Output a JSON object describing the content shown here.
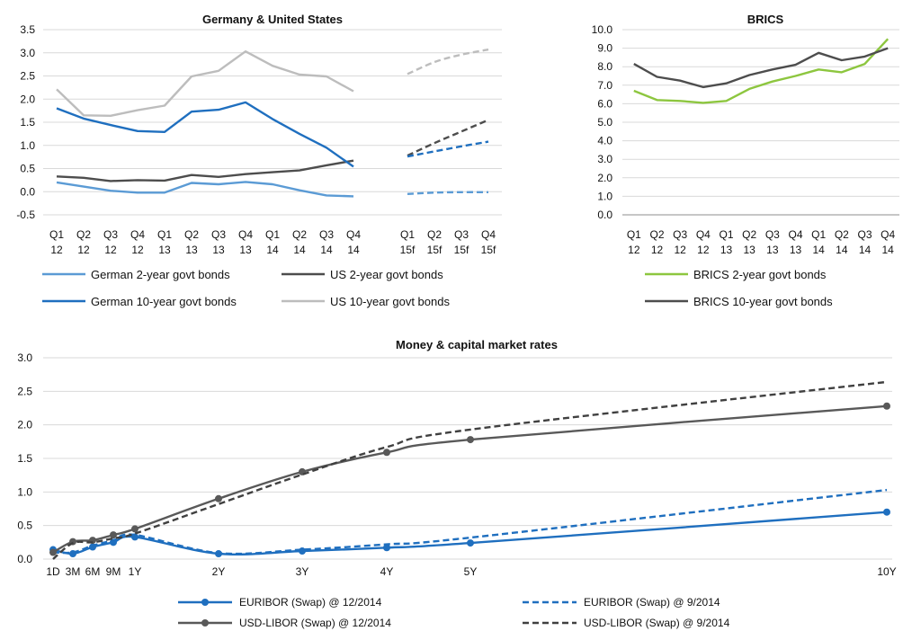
{
  "chart_data": [
    {
      "type": "line",
      "title": "Germany & United States",
      "xlabel": "",
      "ylabel": "",
      "ylim": [
        -0.5,
        3.5
      ],
      "yticks": [
        "3.5",
        "3.0",
        "2.5",
        "2.0",
        "1.5",
        "1.0",
        "0.5",
        "0.0",
        "-0.5"
      ],
      "categories": [
        [
          "Q1",
          "12"
        ],
        [
          "Q2",
          "12"
        ],
        [
          "Q3",
          "12"
        ],
        [
          "Q4",
          "12"
        ],
        [
          "Q1",
          "13"
        ],
        [
          "Q2",
          "13"
        ],
        [
          "Q3",
          "13"
        ],
        [
          "Q4",
          "13"
        ],
        [
          "Q1",
          "14"
        ],
        [
          "Q2",
          "14"
        ],
        [
          "Q3",
          "14"
        ],
        [
          "Q4",
          "14"
        ],
        [
          "Q1",
          "15f"
        ],
        [
          "Q2",
          "15f"
        ],
        [
          "Q3",
          "15f"
        ],
        [
          "Q4",
          "15f"
        ]
      ],
      "gridlines": true,
      "legend_position": "bottom",
      "series": [
        {
          "name": "German 2-year govt bonds",
          "color": "#5b9bd5",
          "values": [
            0.2,
            0.11,
            0.02,
            -0.02,
            -0.02,
            0.19,
            0.16,
            0.21,
            0.16,
            0.03,
            -0.08,
            -0.1,
            null,
            null,
            null,
            null
          ]
        },
        {
          "name": "US 2-year govt bonds",
          "color": "#4d4d4d",
          "values": [
            0.33,
            0.3,
            0.23,
            0.25,
            0.24,
            0.36,
            0.32,
            0.38,
            0.42,
            0.46,
            0.57,
            0.67,
            null,
            null,
            null,
            null
          ]
        },
        {
          "name": "German 10-year govt bonds",
          "color": "#1f6fbf",
          "values": [
            1.8,
            1.58,
            1.44,
            1.31,
            1.29,
            1.73,
            1.77,
            1.93,
            1.57,
            1.25,
            0.95,
            0.54,
            null,
            null,
            null,
            null
          ]
        },
        {
          "name": "US 10-year govt bonds",
          "color": "#bdbdbd",
          "values": [
            2.21,
            1.65,
            1.64,
            1.76,
            1.86,
            2.49,
            2.61,
            3.03,
            2.72,
            2.53,
            2.49,
            2.17,
            null,
            null,
            null,
            null
          ]
        },
        {
          "forecast": true,
          "color": "#5b9bd5",
          "values": [
            null,
            null,
            null,
            null,
            null,
            null,
            null,
            null,
            null,
            null,
            null,
            null,
            -0.05,
            -0.02,
            -0.01,
            -0.01
          ]
        },
        {
          "forecast": true,
          "color": "#4d4d4d",
          "values": [
            null,
            null,
            null,
            null,
            null,
            null,
            null,
            null,
            null,
            null,
            null,
            null,
            0.78,
            1.05,
            1.3,
            1.55
          ]
        },
        {
          "forecast": true,
          "color": "#1f6fbf",
          "values": [
            null,
            null,
            null,
            null,
            null,
            null,
            null,
            null,
            null,
            null,
            null,
            null,
            0.76,
            0.87,
            0.98,
            1.08
          ]
        },
        {
          "forecast": true,
          "color": "#bdbdbd",
          "values": [
            null,
            null,
            null,
            null,
            null,
            null,
            null,
            null,
            null,
            null,
            null,
            null,
            2.54,
            2.8,
            2.96,
            3.07
          ]
        }
      ]
    },
    {
      "type": "line",
      "title": "BRICS",
      "xlabel": "",
      "ylabel": "",
      "ylim": [
        0,
        10
      ],
      "yticks": [
        "10.0",
        "9.0",
        "8.0",
        "7.0",
        "6.0",
        "5.0",
        "4.0",
        "3.0",
        "2.0",
        "1.0",
        "0.0"
      ],
      "categories": [
        [
          "Q1",
          "12"
        ],
        [
          "Q2",
          "12"
        ],
        [
          "Q3",
          "12"
        ],
        [
          "Q4",
          "12"
        ],
        [
          "Q1",
          "13"
        ],
        [
          "Q2",
          "13"
        ],
        [
          "Q3",
          "13"
        ],
        [
          "Q4",
          "13"
        ],
        [
          "Q1",
          "14"
        ],
        [
          "Q2",
          "14"
        ],
        [
          "Q3",
          "14"
        ],
        [
          "Q4",
          "14"
        ]
      ],
      "gridlines": true,
      "legend_position": "bottom",
      "series": [
        {
          "name": "BRICS 2-year govt bonds",
          "color": "#8dc63f",
          "values": [
            6.7,
            6.2,
            6.15,
            6.05,
            6.15,
            6.8,
            7.2,
            7.5,
            7.85,
            7.7,
            8.15,
            9.5
          ]
        },
        {
          "name": "BRICS 10-year govt bonds",
          "color": "#4d4d4d",
          "values": [
            8.15,
            7.45,
            7.25,
            6.9,
            7.1,
            7.55,
            7.85,
            8.1,
            8.75,
            8.35,
            8.55,
            9.0
          ]
        }
      ]
    },
    {
      "type": "line",
      "title": "Money & capital market rates",
      "xlabel": "",
      "ylabel": "",
      "ylim": [
        0,
        3
      ],
      "yticks": [
        "3.0",
        "2.5",
        "2.0",
        "1.5",
        "1.0",
        "0.5",
        "0.0"
      ],
      "x_labels": [
        "1D",
        "3M",
        "6M",
        "9M",
        "1Y",
        "2Y",
        "3Y",
        "4Y",
        "5Y",
        "10Y"
      ],
      "x_years": [
        0.003,
        0.25,
        0.5,
        0.75,
        1,
        2,
        3,
        4,
        5,
        10
      ],
      "gridlines": true,
      "legend_position": "bottom",
      "series": [
        {
          "name": "EURIBOR (Swap) @ 12/2014",
          "color": "#1f6fbf",
          "style": "solid",
          "markers": true,
          "values": [
            0.14,
            0.08,
            0.18,
            0.25,
            0.33,
            0.08,
            0.12,
            0.17,
            0.24,
            0.7
          ]
        },
        {
          "name": "EURIBOR (Swap) @ 9/2014",
          "color": "#1f6fbf",
          "style": "dashed",
          "markers": false,
          "values": [
            0.1,
            0.1,
            0.2,
            0.28,
            0.36,
            0.09,
            0.14,
            0.22,
            0.32,
            1.03
          ]
        },
        {
          "name": "USD-LIBOR (Swap) @ 12/2014",
          "color": "#595959",
          "style": "solid",
          "markers": true,
          "values": [
            0.1,
            0.26,
            0.28,
            0.36,
            0.45,
            0.9,
            1.3,
            1.59,
            1.78,
            2.28
          ]
        },
        {
          "name": "USD-LIBOR (Swap) @ 9/2014",
          "color": "#404040",
          "style": "dashed",
          "markers": false,
          "values": [
            0.0,
            0.24,
            0.25,
            0.31,
            0.38,
            0.82,
            1.26,
            1.67,
            1.93,
            2.64
          ]
        }
      ]
    }
  ]
}
